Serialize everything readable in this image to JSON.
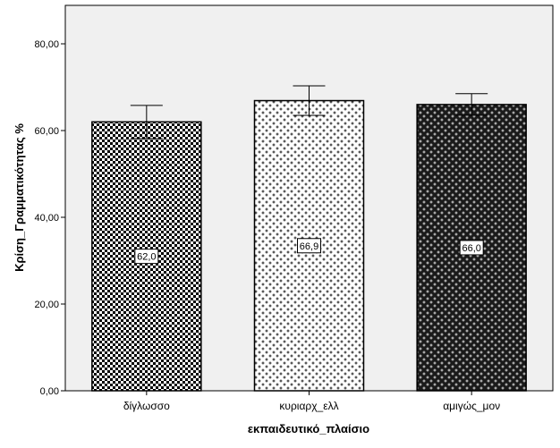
{
  "chart_data": {
    "type": "bar",
    "title": "",
    "xlabel": "εκπαιδευτικό_πλαίσιο",
    "ylabel": "Κρίση_Γραμματικότητας %",
    "ylim": [
      0,
      80
    ],
    "yticks": [
      0,
      20,
      40,
      60,
      80
    ],
    "ytick_labels": [
      "0,00",
      "20,00",
      "40,00",
      "60,00",
      "80,00"
    ],
    "categories": [
      "δίγλωσσο",
      "κυριαρχ_ελλ",
      "αμιγώς_μον"
    ],
    "values": [
      62.0,
      66.9,
      66.0
    ],
    "data_labels": [
      "62,0",
      "66,9",
      "66,0"
    ],
    "error_bars": [
      {
        "low": 58.2,
        "high": 65.8
      },
      {
        "low": 63.5,
        "high": 70.3
      },
      {
        "low": 63.5,
        "high": 68.5
      }
    ],
    "patterns": [
      "checker",
      "light-cross",
      "dark-cross"
    ],
    "grid": false,
    "legend": "none",
    "colors": {
      "plot_background": "#f0f0f0",
      "bar_outline": "#000000"
    }
  }
}
